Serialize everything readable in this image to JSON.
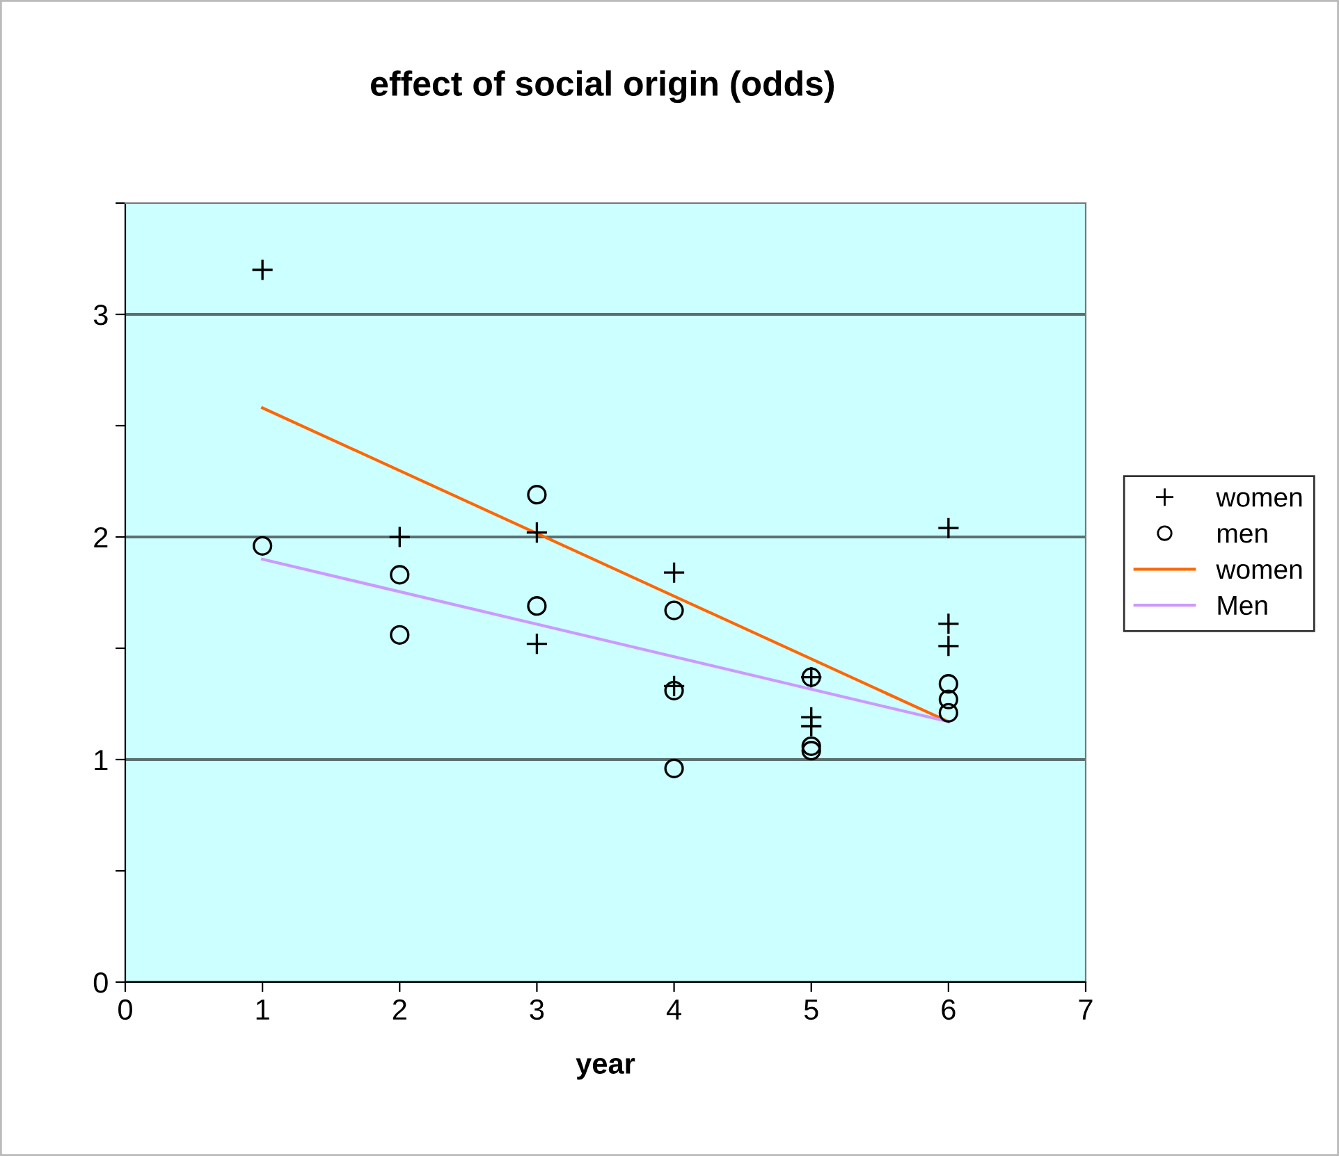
{
  "chart_data": {
    "type": "scatter",
    "title": "effect of social origin (odds)",
    "xlabel": "year",
    "xlim": [
      0,
      7
    ],
    "xticks": [
      0,
      1,
      2,
      3,
      4,
      5,
      6,
      7
    ],
    "ylim": [
      0,
      3.5
    ],
    "yticks": [
      0,
      {
        "value": 0.5,
        "label": null
      },
      1,
      {
        "value": 1.5,
        "label": null
      },
      2,
      {
        "value": 2.5,
        "label": null
      },
      3,
      {
        "value": 3.5,
        "label": null
      }
    ],
    "grid": "y",
    "legend": "right",
    "series": [
      {
        "name": "women",
        "marker": "cross",
        "color": "#000000",
        "x": [
          1,
          2,
          3,
          3,
          4,
          4,
          5,
          5,
          5,
          6,
          6,
          6
        ],
        "values": [
          3.2,
          2.0,
          2.02,
          1.52,
          1.84,
          1.33,
          1.37,
          1.19,
          1.15,
          2.04,
          1.61,
          1.51
        ]
      },
      {
        "name": "men",
        "marker": "circle",
        "color": "#000000",
        "x": [
          1,
          2,
          2,
          3,
          3,
          4,
          4,
          4,
          5,
          5,
          5,
          6,
          6,
          6
        ],
        "values": [
          1.96,
          1.83,
          1.56,
          2.19,
          1.69,
          1.67,
          1.31,
          0.96,
          1.37,
          1.06,
          1.04,
          1.34,
          1.27,
          1.21
        ]
      },
      {
        "name": "women",
        "type": "line",
        "color": "#ff6600",
        "x": [
          1,
          6
        ],
        "values": [
          2.58,
          1.17
        ]
      },
      {
        "name": "Men",
        "type": "line",
        "color": "#cc99ff",
        "x": [
          1,
          6
        ],
        "values": [
          1.9,
          1.17
        ]
      }
    ]
  }
}
